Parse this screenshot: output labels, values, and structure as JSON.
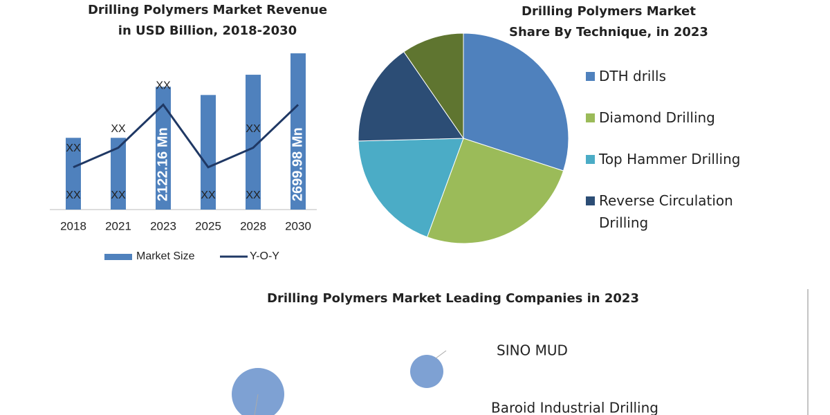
{
  "chart_data": [
    {
      "type": "combo",
      "title": "Drilling Polymers Market Revenue in USD Billion, 2018-2030",
      "categories": [
        "2018",
        "2021",
        "2023",
        "2025",
        "2028",
        "2030"
      ],
      "series": [
        {
          "name": "Market Size",
          "type": "bar",
          "color": "#4f81bd",
          "values": [
            1240,
            1240,
            2122.16,
            1980,
            2330,
            2699.98
          ],
          "value_labels": [
            "XX",
            "XX",
            "2122.16 Mn",
            "XX",
            "XX",
            "2699.98 Mn"
          ]
        },
        {
          "name": "Y-O-Y",
          "type": "line",
          "axis": "y2",
          "color": "#1f3864",
          "values": [
            6.1,
            8.9,
            15.1,
            6.1,
            8.9,
            15.1
          ],
          "value_labels": [
            "XX",
            "XX",
            "XX",
            null,
            "XX",
            null
          ]
        }
      ],
      "ylim": [
        0,
        3000
      ],
      "y2lim": [
        0,
        25
      ],
      "legend": "bottom"
    },
    {
      "type": "pie",
      "title": "Drilling Polymers Market Share By Technique, in 2023",
      "categories": [
        "DTH drills",
        "Diamond Drilling",
        "Top Hammer Drilling",
        "Reverse Circulation Drilling",
        null
      ],
      "values": [
        30,
        25.6,
        19,
        15.8,
        9.6
      ],
      "colors": [
        "#4f81bd",
        "#9bbb59",
        "#4bacc6",
        "#2c4d75",
        "#5f7530"
      ],
      "legend": "right"
    },
    {
      "type": "bubble",
      "title": "Drilling Polymers Market Leading Companies in 2023",
      "categories": [
        "SINO MUD",
        "Baroid Industrial Drilling"
      ],
      "values": [
        24,
        38
      ],
      "color": "#7ea1d3"
    }
  ]
}
